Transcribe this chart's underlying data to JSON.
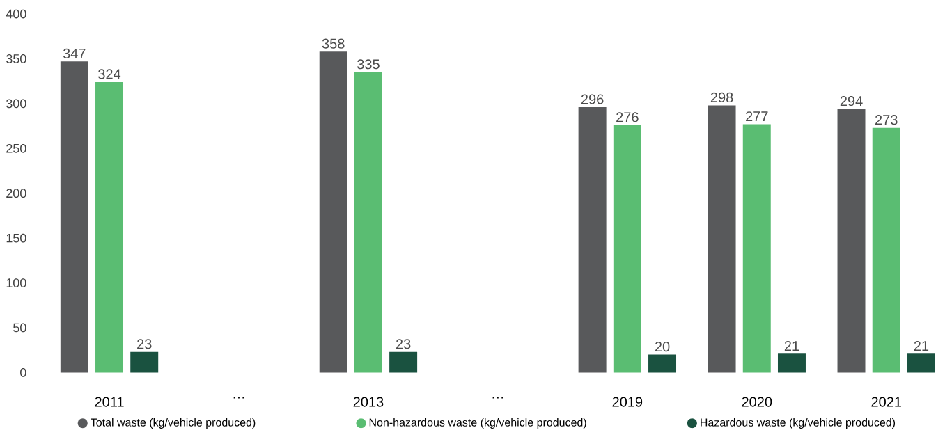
{
  "chart_data": {
    "type": "bar",
    "categories": [
      "2011",
      "…",
      "2013",
      "…",
      "2019",
      "2020",
      "2021"
    ],
    "series": [
      {
        "name": "Total waste (kg/vehicle produced)",
        "color": "#58595b",
        "values": [
          347,
          null,
          358,
          null,
          296,
          298,
          294
        ]
      },
      {
        "name": "Non-hazardous waste (kg/vehicle produced)",
        "color": "#5abd72",
        "values": [
          324,
          null,
          335,
          null,
          276,
          277,
          273
        ]
      },
      {
        "name": "Hazardous waste (kg/vehicle produced)",
        "color": "#1a5240",
        "values": [
          23,
          null,
          23,
          null,
          20,
          21,
          21
        ]
      }
    ],
    "ylim": [
      0,
      400
    ],
    "yticks": [
      0,
      50,
      100,
      150,
      200,
      250,
      300,
      350,
      400
    ],
    "data_labels": true,
    "grid": false,
    "legend": "bottom"
  }
}
